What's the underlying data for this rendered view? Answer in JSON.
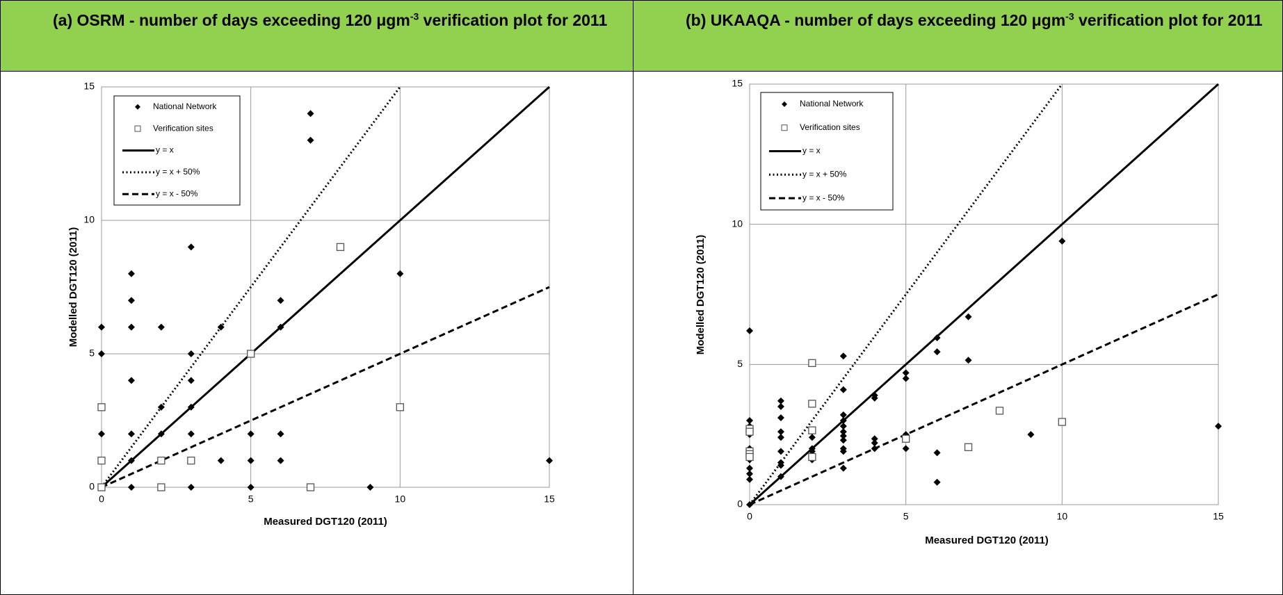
{
  "table": {
    "headers": [
      {
        "text": "(a)  OSRM - number of days exceeding 120 μgm",
        "superscript": "-3",
        "text_after": " verification plot for 2011"
      },
      {
        "text": "(b)  UKAAQA - number of days exceeding 120 μgm",
        "superscript": "-3",
        "text_after": " verification plot for 2011"
      }
    ]
  },
  "chart_data": [
    {
      "type": "scatter",
      "xlabel": "Measured DGT120  (2011)",
      "ylabel": "Modelled DGT120  (2011)",
      "xlim": [
        0,
        15
      ],
      "ylim": [
        0,
        15
      ],
      "xticks": [
        0,
        5,
        10,
        15
      ],
      "yticks": [
        0,
        5,
        10,
        15
      ],
      "grid": true,
      "legend": "upper-left",
      "series": [
        {
          "name": "National Network",
          "marker": "diamond",
          "color": "#000000",
          "x": [
            0,
            0,
            0,
            0,
            0,
            1,
            1,
            1,
            1,
            1,
            1,
            1,
            2,
            2,
            2,
            2,
            2,
            3,
            3,
            3,
            3,
            3,
            3,
            3,
            4,
            4,
            5,
            5,
            5,
            6,
            6,
            6,
            6,
            7,
            7,
            9,
            10,
            15
          ],
          "values": [
            6,
            5,
            2,
            1,
            0,
            8,
            7,
            6,
            4,
            2,
            1,
            0,
            6,
            3,
            2,
            1,
            0,
            9,
            5,
            4,
            3,
            2,
            1,
            0,
            6,
            1,
            2,
            1,
            0,
            7,
            6,
            2,
            1,
            14,
            13,
            0,
            8,
            1
          ]
        },
        {
          "name": "Verification sites",
          "marker": "square",
          "color": "#555555",
          "x": [
            0,
            0,
            0,
            2,
            2,
            3,
            5,
            7,
            8,
            10
          ],
          "values": [
            3,
            1,
            0,
            1,
            0,
            1,
            5,
            0,
            9,
            3
          ]
        },
        {
          "name": "y = x",
          "line": "solid",
          "color": "#000000",
          "x": [
            0,
            15
          ],
          "values": [
            0,
            15
          ]
        },
        {
          "name": "y = x + 50%",
          "line": "dotted",
          "color": "#000000",
          "x": [
            0,
            10
          ],
          "values": [
            0,
            15
          ]
        },
        {
          "name": "y = x - 50%",
          "line": "dashed",
          "color": "#000000",
          "x": [
            0,
            15
          ],
          "values": [
            0,
            7.5
          ]
        }
      ]
    },
    {
      "type": "scatter",
      "xlabel": "Measured DGT120 (2011)",
      "ylabel": "Modelled DGT120 (2011)",
      "xlim": [
        0,
        15
      ],
      "ylim": [
        0,
        15
      ],
      "xticks": [
        0,
        5,
        10,
        15
      ],
      "yticks": [
        0,
        5,
        10,
        15
      ],
      "grid": true,
      "legend": "upper-left",
      "series": [
        {
          "name": "National Network",
          "marker": "diamond",
          "color": "#000000",
          "x": [
            0,
            0,
            0,
            0,
            0,
            0,
            0,
            0,
            0,
            0,
            0,
            1,
            1,
            1,
            1,
            1,
            1,
            1,
            1,
            1,
            2,
            2,
            2,
            2,
            2,
            2,
            3,
            3,
            3,
            3,
            3,
            3,
            3,
            3,
            3,
            3,
            3,
            4,
            4,
            4,
            4,
            4,
            5,
            5,
            5,
            5,
            6,
            6,
            6,
            6,
            7,
            7,
            9,
            10,
            15
          ],
          "values": [
            6.2,
            3.0,
            2.8,
            2.5,
            2.0,
            1.8,
            1.6,
            1.3,
            1.1,
            0.9,
            0,
            3.7,
            3.5,
            3.1,
            2.6,
            2.4,
            1.9,
            1.5,
            1.4,
            1.0,
            2.6,
            2.4,
            2.0,
            1.9,
            1.75,
            1.6,
            5.3,
            4.1,
            3.2,
            3.0,
            2.8,
            2.6,
            2.45,
            2.3,
            2.0,
            1.9,
            1.3,
            3.9,
            3.8,
            2.35,
            2.2,
            2.0,
            4.7,
            4.5,
            2.5,
            2.0,
            5.95,
            5.45,
            1.85,
            0.8,
            6.7,
            5.15,
            2.5,
            9.4,
            2.8
          ]
        },
        {
          "name": "Verification sites",
          "marker": "square",
          "color": "#555555",
          "x": [
            0,
            0,
            0,
            0,
            0,
            2,
            2,
            2,
            2,
            5,
            7,
            8,
            10
          ],
          "values": [
            2.7,
            2.6,
            1.9,
            1.8,
            1.7,
            5.05,
            3.6,
            2.65,
            1.7,
            2.35,
            2.05,
            3.35,
            2.95
          ]
        },
        {
          "name": "y = x",
          "line": "solid",
          "color": "#000000",
          "x": [
            0,
            15
          ],
          "values": [
            0,
            15
          ]
        },
        {
          "name": "y = x + 50%",
          "line": "dotted",
          "color": "#000000",
          "x": [
            0,
            10
          ],
          "values": [
            0,
            15
          ]
        },
        {
          "name": "y = x - 50%",
          "line": "dashed",
          "color": "#000000",
          "x": [
            0,
            15
          ],
          "values": [
            0,
            7.5
          ]
        }
      ]
    }
  ]
}
